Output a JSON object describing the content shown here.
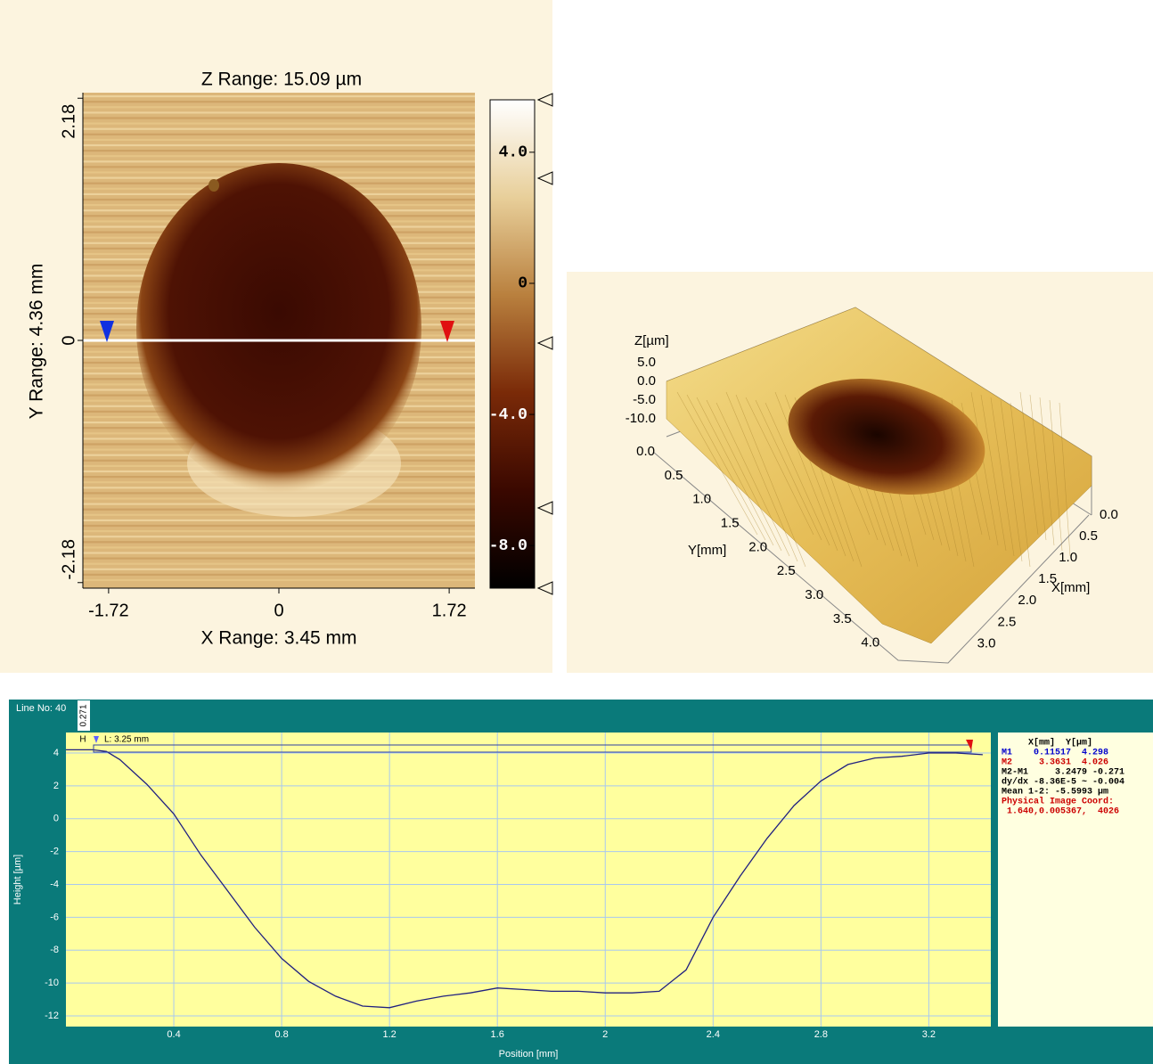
{
  "chart_data": [
    {
      "type": "heatmap",
      "title": "Z Range: 15.09 µm",
      "x_label": "X Range: 3.45 mm",
      "y_label": "Y Range: 4.36 mm",
      "xlim": [
        -1.98,
        1.98
      ],
      "xticks": [
        -1.72,
        0,
        1.72
      ],
      "ylim": [
        -2.23,
        2.23
      ],
      "yticks": [
        -2.18,
        0,
        2.18
      ],
      "colorbar": {
        "lim": [
          -9.3,
          5.6
        ],
        "ticks": [
          {
            "value": 4,
            "label": "4.0"
          },
          0,
          {
            "value": -4,
            "label": "-4.0"
          },
          {
            "value": -8,
            "label": "-8.0"
          }
        ],
        "colors": [
          "#000000",
          "#3a0800",
          "#7a2a08",
          "#b9803e",
          "#e8cf9a",
          "#ffffff"
        ]
      }
    },
    {
      "type": "surface3d",
      "z_label": "Z[µm]",
      "y_label": "Y[mm]",
      "x_label": "X[mm]",
      "zlim": [
        -10,
        5
      ],
      "zticks": [
        {
          "value": 5,
          "label": "5.0"
        },
        {
          "value": 0,
          "label": "0.0"
        },
        {
          "value": -5,
          "label": "-5.0"
        },
        {
          "value": -10,
          "label": "-10.0"
        }
      ],
      "ylim": [
        0,
        4.36
      ],
      "yticks": [
        {
          "value": 0,
          "label": "0.0"
        },
        0.5,
        {
          "value": 1,
          "label": "1.0"
        },
        1.5,
        {
          "value": 2,
          "label": "2.0"
        },
        2.5,
        {
          "value": 3,
          "label": "3.0"
        },
        3.5,
        {
          "value": 4,
          "label": "4.0"
        }
      ],
      "xlim": [
        0,
        3.45
      ],
      "xticks": [
        {
          "value": 0,
          "label": "0.0"
        },
        0.5,
        {
          "value": 1,
          "label": "1.0"
        },
        1.5,
        {
          "value": 2,
          "label": "2.0"
        },
        2.5,
        {
          "value": 3,
          "label": "3.0"
        }
      ]
    },
    {
      "type": "line",
      "title": "Line No: 40",
      "x_label": "Position [mm]",
      "y_label": "Height [µm]",
      "marker_height": "0.271",
      "marker_h": "H",
      "marker_length": "L: 3.25 mm",
      "xlim": [
        0,
        3.43
      ],
      "xticks": [
        0.4,
        0.8,
        1.2,
        1.6,
        2,
        2.4,
        2.8,
        3.2
      ],
      "ylim": [
        -12.65,
        5.25
      ],
      "yticks": [
        -12,
        -10,
        -8,
        -6,
        -4,
        -2,
        0,
        2,
        4
      ],
      "grid": true,
      "color": "#202080",
      "x": [
        0,
        0.1,
        0.15,
        0.2,
        0.3,
        0.4,
        0.5,
        0.6,
        0.7,
        0.8,
        0.9,
        1.0,
        1.1,
        1.2,
        1.3,
        1.4,
        1.5,
        1.6,
        1.7,
        1.8,
        1.9,
        2.0,
        2.1,
        2.2,
        2.3,
        2.4,
        2.5,
        2.6,
        2.7,
        2.8,
        2.9,
        3.0,
        3.1,
        3.2,
        3.3,
        3.4
      ],
      "values": [
        4.2,
        4.2,
        4.1,
        3.6,
        2.1,
        0.3,
        -2.2,
        -4.4,
        -6.6,
        -8.5,
        -9.9,
        -10.8,
        -11.4,
        -11.5,
        -11.1,
        -10.8,
        -10.6,
        -10.3,
        -10.4,
        -10.5,
        -10.5,
        -10.6,
        -10.6,
        -10.5,
        -9.2,
        -6.0,
        -3.5,
        -1.2,
        0.8,
        2.3,
        3.3,
        3.7,
        3.8,
        4.0,
        4.0,
        3.9
      ]
    }
  ],
  "info_panel": {
    "lines": [
      {
        "text": "     X[mm]  Y[µm]",
        "color": "#000000"
      },
      {
        "text": "M1    0.11517  4.298",
        "color": "#0000cc"
      },
      {
        "text": "M2     3.3631  4.026",
        "color": "#cc0000"
      },
      {
        "text": "M2-M1     3.2479 -0.271",
        "color": "#000000"
      },
      {
        "text": "dy/dx -8.36E-5 ~ -0.004",
        "color": "#000000"
      },
      {
        "text": "Mean 1-2: -5.5993 µm",
        "color": "#000000"
      },
      {
        "text": "Physical Image Coord:",
        "color": "#cc0000"
      },
      {
        "text": " 1.640,0.005367,  4026",
        "color": "#cc0000"
      }
    ]
  }
}
